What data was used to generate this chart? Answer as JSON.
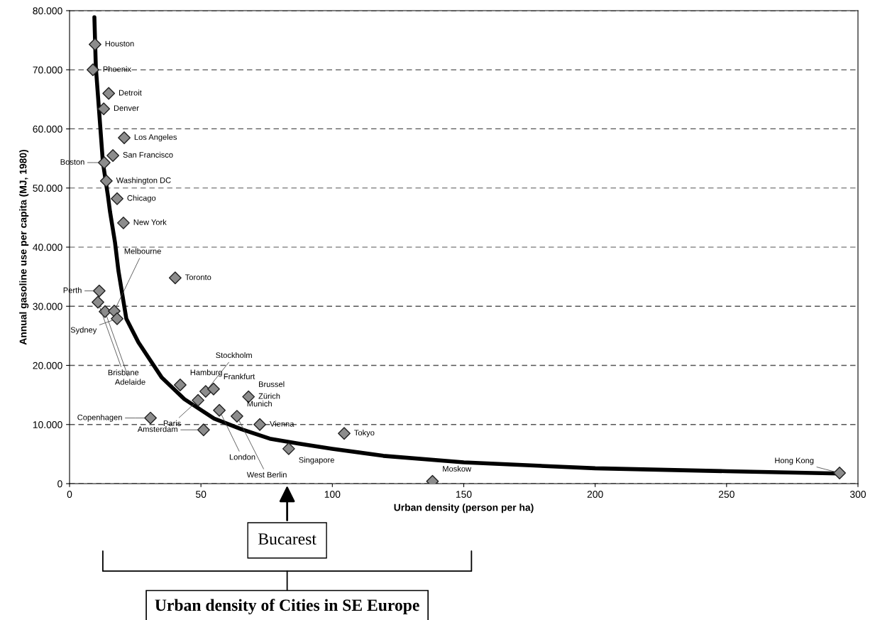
{
  "chart_data": {
    "type": "scatter",
    "xlabel": "Urban density (person per ha)",
    "ylabel": "Annual gasoline use per capita (MJ, 1980)",
    "xlim": [
      0,
      300
    ],
    "xticks": [
      0,
      50,
      100,
      150,
      200,
      250,
      300
    ],
    "ylim": [
      0,
      80000
    ],
    "yticks": [
      0,
      {
        "value": 10000,
        "label": "10.000"
      },
      {
        "value": 20000,
        "label": "20.000"
      },
      {
        "value": 30000,
        "label": "30.000"
      },
      {
        "value": 40000,
        "label": "40.000"
      },
      {
        "value": 50000,
        "label": "50.000"
      },
      {
        "value": 60000,
        "label": "60.000"
      },
      {
        "value": 70000,
        "label": "70.000"
      },
      {
        "value": 80000,
        "label": "80.000"
      }
    ],
    "grid": "y",
    "legend": false,
    "series": [
      {
        "color": "#8c8c8c",
        "marker": "diamond",
        "x": [
          9.7,
          8.9,
          14.9,
          13.0,
          20.8,
          16.5,
          13.2,
          14.0,
          18.1,
          20.5,
          40.2,
          11.3,
          10.8,
          13.5,
          17.0,
          18.1,
          42.1,
          48.9,
          51.8,
          54.8,
          57.0,
          63.7,
          68.1,
          72.4,
          30.8,
          51.0,
          83.4,
          104.5,
          138.1,
          293.0
        ],
        "values": [
          74300,
          70000,
          66000,
          63400,
          58500,
          55500,
          54300,
          51200,
          48200,
          44100,
          34800,
          32600,
          30700,
          29100,
          29200,
          27900,
          16700,
          14100,
          15600,
          16000,
          12400,
          11400,
          14700,
          10000,
          11100,
          9100,
          5900,
          8500,
          400,
          1800
        ]
      },
      {
        "type": "line",
        "color": "#000000",
        "marker": "none",
        "line_style": "solid",
        "x": [
          9.45,
          10,
          11.3,
          12.7,
          14.6,
          15.4,
          17.3,
          18.6,
          21.6,
          26.2,
          35,
          43.7,
          55,
          65.4,
          76.2,
          87,
          100,
          119.4,
          150,
          200,
          250,
          293
        ],
        "values": [
          78900,
          70500,
          62700,
          54300,
          48700,
          46000,
          40800,
          36000,
          27900,
          23900,
          18000,
          14300,
          11000,
          9200,
          7600,
          6800,
          5900,
          4700,
          3600,
          2600,
          2100,
          1700
        ]
      }
    ],
    "annotations": [
      {
        "text": "Houston",
        "x": 9.7,
        "y": 74300
      },
      {
        "text": "Phoenix",
        "x": 8.9,
        "y": 70000
      },
      {
        "text": "Detroit",
        "x": 14.9,
        "y": 66000
      },
      {
        "text": "Denver",
        "x": 13.0,
        "y": 63400
      },
      {
        "text": "Los Angeles",
        "x": 20.8,
        "y": 58500
      },
      {
        "text": "San Francisco",
        "x": 16.5,
        "y": 55500
      },
      {
        "text": "Boston",
        "x": 13.2,
        "y": 54300
      },
      {
        "text": "Washington DC",
        "x": 14.0,
        "y": 51200
      },
      {
        "text": "Chicago",
        "x": 18.1,
        "y": 48200
      },
      {
        "text": "New York",
        "x": 20.5,
        "y": 44100
      },
      {
        "text": "Toronto",
        "x": 40.2,
        "y": 34800
      },
      {
        "text": "Perth",
        "x": 11.3,
        "y": 32600
      },
      {
        "text": "Brisbane",
        "x": 10.8,
        "y": 30700
      },
      {
        "text": "Melbourne",
        "x": 17.0,
        "y": 29200
      },
      {
        "text": "Adelaide",
        "x": 13.5,
        "y": 29100
      },
      {
        "text": "Sydney",
        "x": 18.1,
        "y": 27900
      },
      {
        "text": "Hamburg",
        "x": 42.1,
        "y": 16700
      },
      {
        "text": "Frankfurt",
        "x": 54.8,
        "y": 16000
      },
      {
        "text": "Stockholm",
        "x": 51.8,
        "y": 15600
      },
      {
        "text": "Zürich",
        "x": 68.1,
        "y": 14700
      },
      {
        "text": "Brussel",
        "x": 68.1,
        "y": 14700
      },
      {
        "text": "Paris",
        "x": 48.9,
        "y": 14100
      },
      {
        "text": "London",
        "x": 57.0,
        "y": 12400
      },
      {
        "text": "Munich",
        "x": 63.7,
        "y": 11400
      },
      {
        "text": "West Berlin",
        "x": 63.7,
        "y": 11400
      },
      {
        "text": "Vienna",
        "x": 72.4,
        "y": 10000
      },
      {
        "text": "Copenhagen",
        "x": 30.8,
        "y": 11100
      },
      {
        "text": "Amsterdam",
        "x": 51.0,
        "y": 9100
      },
      {
        "text": "Tokyo",
        "x": 104.5,
        "y": 8500
      },
      {
        "text": "Singapore",
        "x": 83.4,
        "y": 5900
      },
      {
        "text": "Moskow",
        "x": 138.1,
        "y": 400
      },
      {
        "text": "Hong Kong",
        "x": 293.0,
        "y": 1800
      },
      "Bucarest",
      "Urban density of Cities in SE Europe"
    ]
  }
}
